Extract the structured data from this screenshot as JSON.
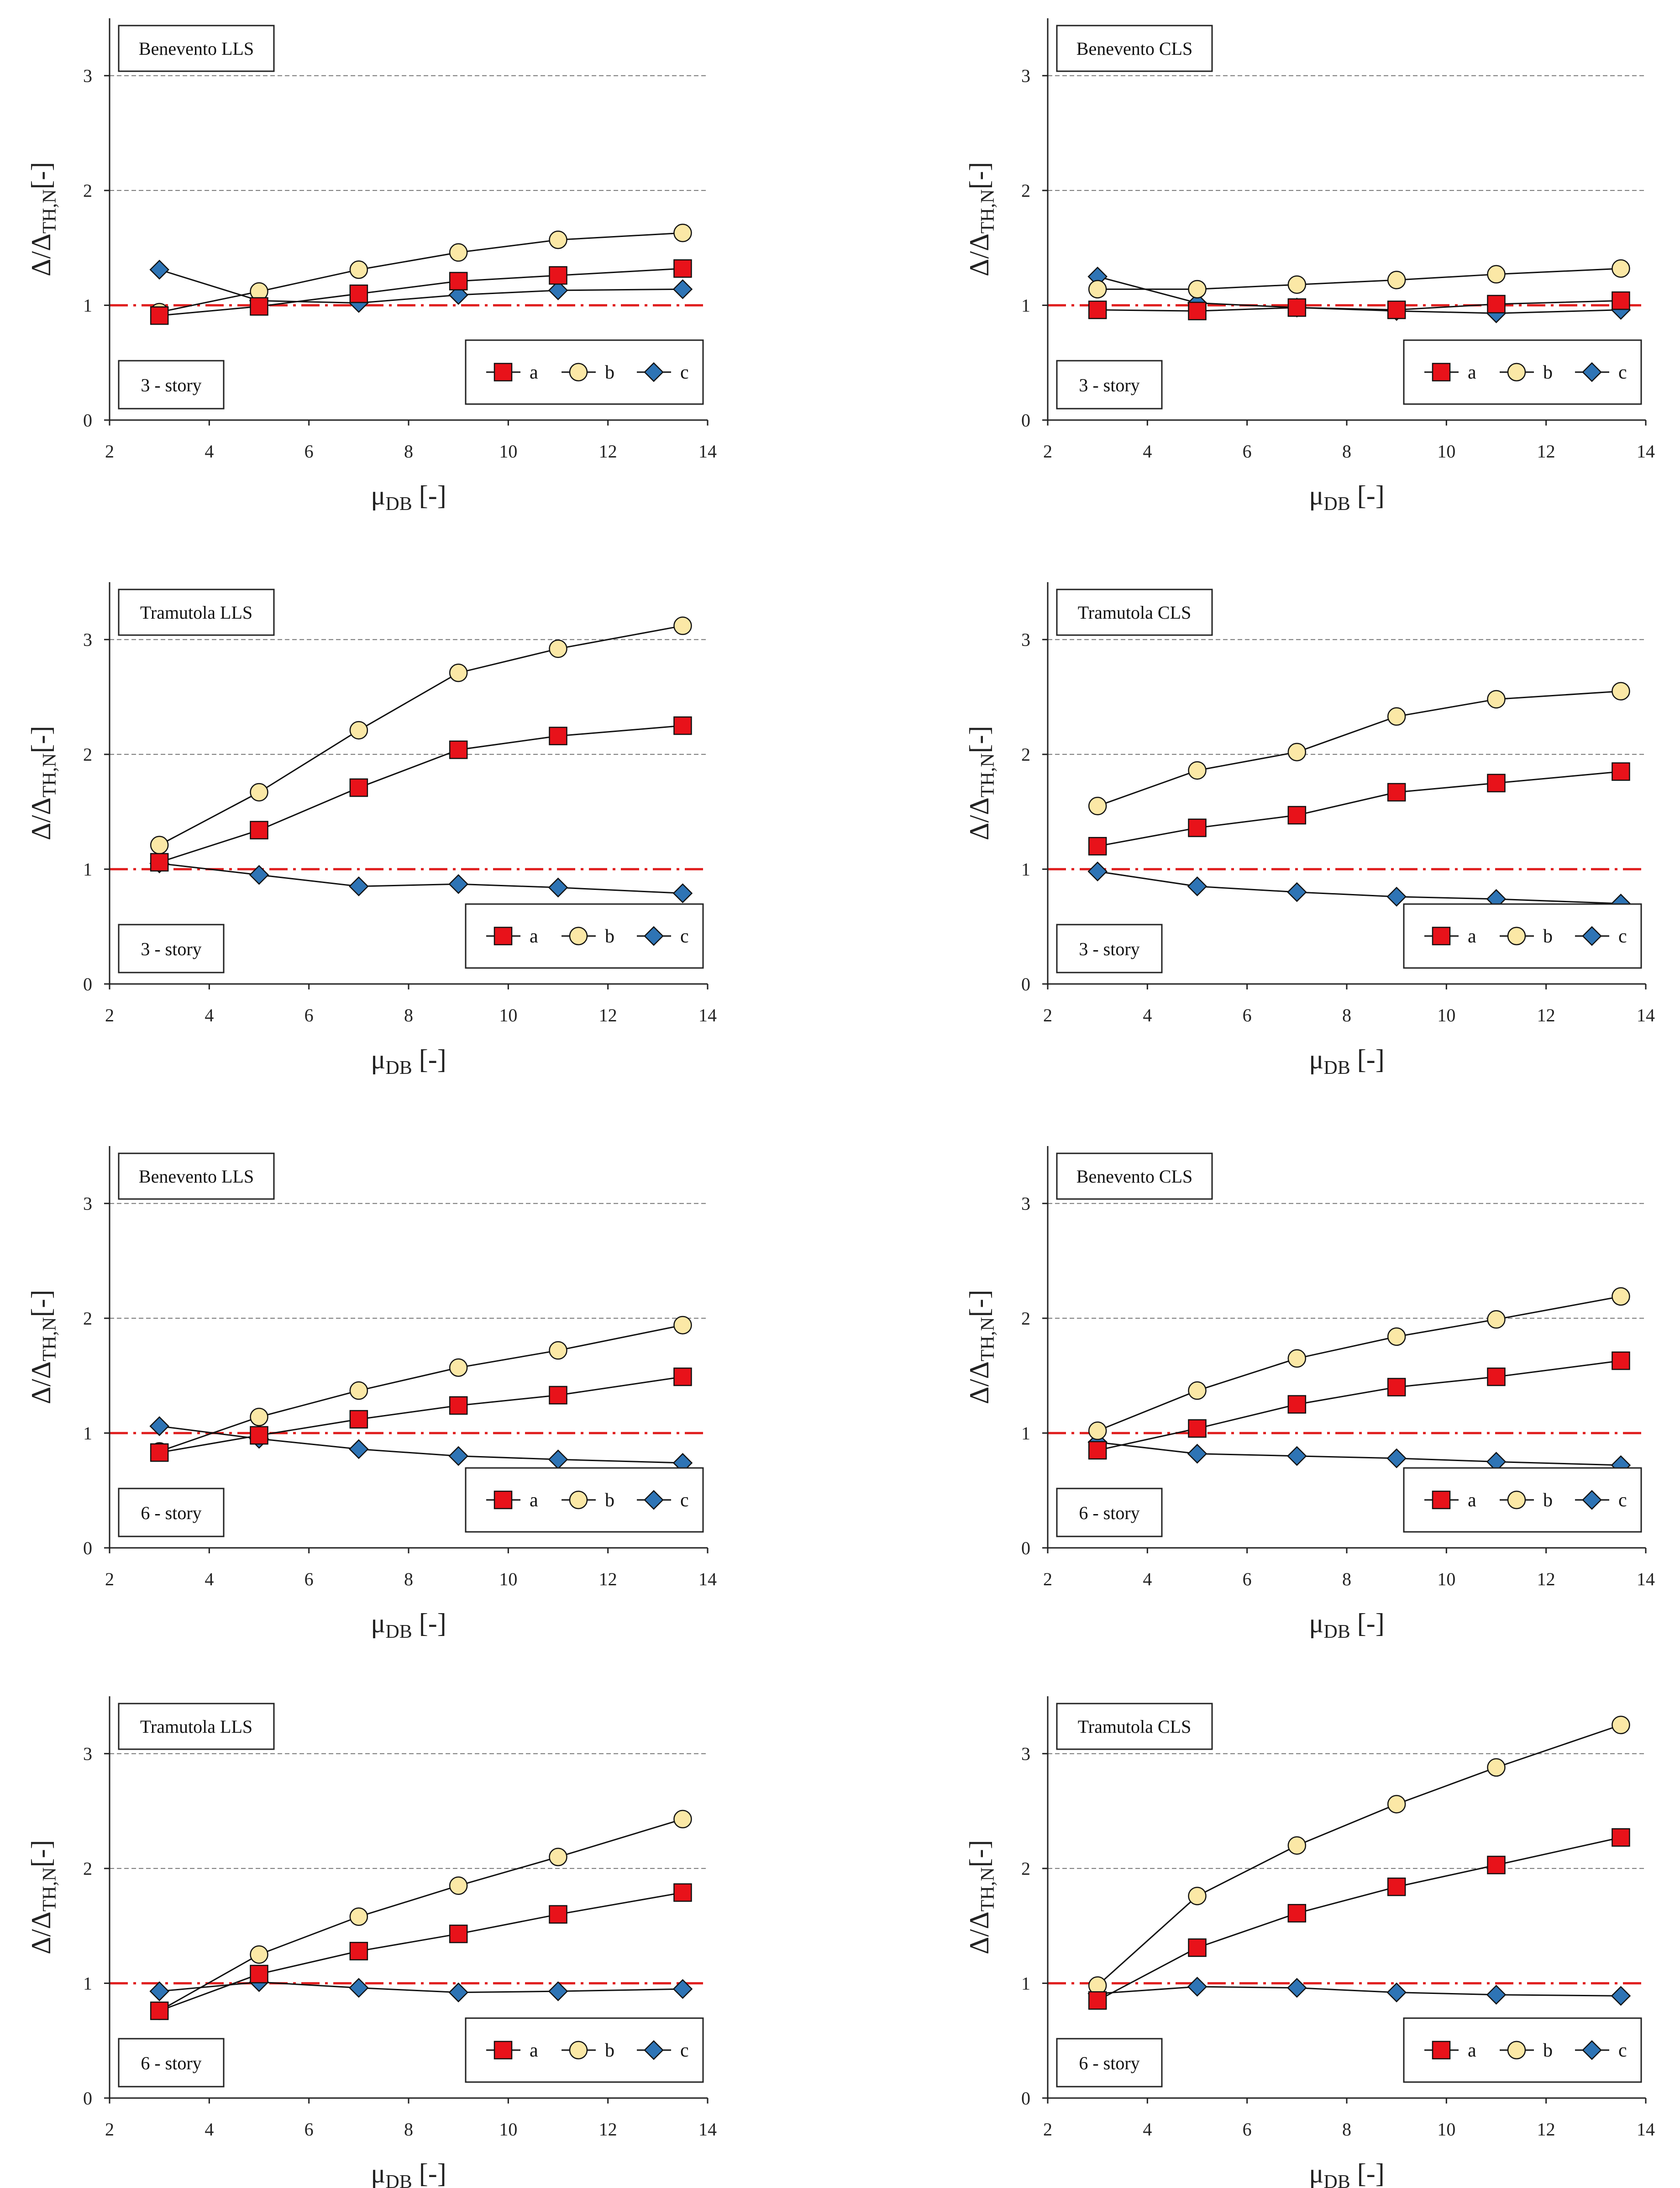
{
  "figure": {
    "series_names": [
      "a",
      "b",
      "c"
    ],
    "marker_styles": {
      "a": "square",
      "b": "circle",
      "c": "diamond"
    },
    "colors": {
      "a_fill": "#e8121a",
      "b_fill": "#fbe8a6",
      "c_fill": "#2e74b5",
      "reference_line": "#e02020",
      "gridline": "#777777",
      "line": "#111111"
    }
  },
  "chart_data": [
    {
      "type": "line",
      "site": "Benevento LLS",
      "story": "3 - story",
      "xlabel": {
        "main": "μ",
        "sub": "DB",
        "tail": " [-]"
      },
      "ylabel": {
        "main": "Δ/Δ",
        "sub": "TH,N",
        "tail": "[-]"
      },
      "xlim": [
        2,
        14
      ],
      "ylim": [
        0,
        3.5
      ],
      "xticks": [
        2,
        4,
        6,
        8,
        10,
        12,
        14
      ],
      "yticks": [
        0,
        1,
        2,
        3
      ],
      "grid_y": [
        2,
        3
      ],
      "reference_y": 1,
      "x": [
        3,
        5,
        7,
        9,
        11,
        13.5
      ],
      "series": [
        {
          "name": "a",
          "values": [
            0.91,
            0.99,
            1.1,
            1.21,
            1.26,
            1.32
          ]
        },
        {
          "name": "b",
          "values": [
            0.94,
            1.12,
            1.31,
            1.46,
            1.57,
            1.63
          ]
        },
        {
          "name": "c",
          "values": [
            1.31,
            1.04,
            1.02,
            1.09,
            1.13,
            1.14
          ]
        }
      ],
      "legend": "bottom-right"
    },
    {
      "type": "line",
      "site": "Benevento CLS",
      "story": "3 - story",
      "xlabel": {
        "main": "μ",
        "sub": "DB",
        "tail": " [-]"
      },
      "ylabel": {
        "main": "Δ/Δ",
        "sub": "TH,N",
        "tail": "[-]"
      },
      "xlim": [
        2,
        14
      ],
      "ylim": [
        0,
        3.5
      ],
      "xticks": [
        2,
        4,
        6,
        8,
        10,
        12,
        14
      ],
      "yticks": [
        0,
        1,
        2,
        3
      ],
      "grid_y": [
        2,
        3
      ],
      "reference_y": 1,
      "x": [
        3,
        5,
        7,
        9,
        11,
        13.5
      ],
      "series": [
        {
          "name": "a",
          "values": [
            0.96,
            0.95,
            0.98,
            0.96,
            1.01,
            1.04
          ]
        },
        {
          "name": "b",
          "values": [
            1.14,
            1.14,
            1.18,
            1.22,
            1.27,
            1.32
          ]
        },
        {
          "name": "c",
          "values": [
            1.25,
            1.02,
            0.98,
            0.95,
            0.93,
            0.96
          ]
        }
      ],
      "legend": "bottom-right"
    },
    {
      "type": "line",
      "site": "Tramutola LLS",
      "story": "3 - story",
      "xlabel": {
        "main": "μ",
        "sub": "DB",
        "tail": " [-]"
      },
      "ylabel": {
        "main": "Δ/Δ",
        "sub": "TH,N",
        "tail": "[-]"
      },
      "xlim": [
        2,
        14
      ],
      "ylim": [
        0,
        3.5
      ],
      "xticks": [
        2,
        4,
        6,
        8,
        10,
        12,
        14
      ],
      "yticks": [
        0,
        1,
        2,
        3
      ],
      "grid_y": [
        2,
        3
      ],
      "reference_y": 1,
      "x": [
        3,
        5,
        7,
        9,
        11,
        13.5
      ],
      "series": [
        {
          "name": "a",
          "values": [
            1.06,
            1.34,
            1.71,
            2.04,
            2.16,
            2.25
          ]
        },
        {
          "name": "b",
          "values": [
            1.21,
            1.67,
            2.21,
            2.71,
            2.92,
            3.12
          ]
        },
        {
          "name": "c",
          "values": [
            1.05,
            0.95,
            0.85,
            0.87,
            0.84,
            0.79
          ]
        }
      ],
      "legend": "bottom-right"
    },
    {
      "type": "line",
      "site": "Tramutola CLS",
      "story": "3 - story",
      "xlabel": {
        "main": "μ",
        "sub": "DB",
        "tail": " [-]"
      },
      "ylabel": {
        "main": "Δ/Δ",
        "sub": "TH,N",
        "tail": "[-]"
      },
      "xlim": [
        2,
        14
      ],
      "ylim": [
        0,
        3.5
      ],
      "xticks": [
        2,
        4,
        6,
        8,
        10,
        12,
        14
      ],
      "yticks": [
        0,
        1,
        2,
        3
      ],
      "grid_y": [
        2,
        3
      ],
      "reference_y": 1,
      "x": [
        3,
        5,
        7,
        9,
        11,
        13.5
      ],
      "series": [
        {
          "name": "a",
          "values": [
            1.2,
            1.36,
            1.47,
            1.67,
            1.75,
            1.85
          ]
        },
        {
          "name": "b",
          "values": [
            1.55,
            1.86,
            2.02,
            2.33,
            2.48,
            2.55
          ]
        },
        {
          "name": "c",
          "values": [
            0.98,
            0.85,
            0.8,
            0.76,
            0.74,
            0.7
          ]
        }
      ],
      "legend": "bottom-right"
    },
    {
      "type": "line",
      "site": "Benevento LLS",
      "story": "6 - story",
      "xlabel": {
        "main": "μ",
        "sub": "DB",
        "tail": " [-]"
      },
      "ylabel": {
        "main": "Δ/Δ",
        "sub": "TH,N",
        "tail": "[-]"
      },
      "xlim": [
        2,
        14
      ],
      "ylim": [
        0,
        3.5
      ],
      "xticks": [
        2,
        4,
        6,
        8,
        10,
        12,
        14
      ],
      "yticks": [
        0,
        1,
        2,
        3
      ],
      "grid_y": [
        2,
        3
      ],
      "reference_y": 1,
      "x": [
        3,
        5,
        7,
        9,
        11,
        13.5
      ],
      "series": [
        {
          "name": "a",
          "values": [
            0.83,
            0.98,
            1.12,
            1.24,
            1.33,
            1.49
          ]
        },
        {
          "name": "b",
          "values": [
            0.84,
            1.14,
            1.37,
            1.57,
            1.72,
            1.94
          ]
        },
        {
          "name": "c",
          "values": [
            1.06,
            0.95,
            0.86,
            0.8,
            0.77,
            0.74
          ]
        }
      ],
      "legend": "bottom-right"
    },
    {
      "type": "line",
      "site": "Benevento CLS",
      "story": "6 - story",
      "xlabel": {
        "main": "μ",
        "sub": "DB",
        "tail": " [-]"
      },
      "ylabel": {
        "main": "Δ/Δ",
        "sub": "TH,N",
        "tail": "[-]"
      },
      "xlim": [
        2,
        14
      ],
      "ylim": [
        0,
        3.5
      ],
      "xticks": [
        2,
        4,
        6,
        8,
        10,
        12,
        14
      ],
      "yticks": [
        0,
        1,
        2,
        3
      ],
      "grid_y": [
        2,
        3
      ],
      "reference_y": 1,
      "x": [
        3,
        5,
        7,
        9,
        11,
        13.5
      ],
      "series": [
        {
          "name": "a",
          "values": [
            0.85,
            1.04,
            1.25,
            1.4,
            1.49,
            1.63
          ]
        },
        {
          "name": "b",
          "values": [
            1.02,
            1.37,
            1.65,
            1.84,
            1.99,
            2.19
          ]
        },
        {
          "name": "c",
          "values": [
            0.92,
            0.82,
            0.8,
            0.78,
            0.75,
            0.72
          ]
        }
      ],
      "legend": "bottom-right"
    },
    {
      "type": "line",
      "site": "Tramutola LLS",
      "story": "6 - story",
      "xlabel": {
        "main": "μ",
        "sub": "DB",
        "tail": " [-]"
      },
      "ylabel": {
        "main": "Δ/Δ",
        "sub": "TH,N",
        "tail": "[-]"
      },
      "xlim": [
        2,
        14
      ],
      "ylim": [
        0,
        3.5
      ],
      "xticks": [
        2,
        4,
        6,
        8,
        10,
        12,
        14
      ],
      "yticks": [
        0,
        1,
        2,
        3
      ],
      "grid_y": [
        2,
        3
      ],
      "reference_y": 1,
      "x": [
        3,
        5,
        7,
        9,
        11,
        13.5
      ],
      "series": [
        {
          "name": "a",
          "values": [
            0.76,
            1.08,
            1.28,
            1.43,
            1.6,
            1.79
          ]
        },
        {
          "name": "b",
          "values": [
            0.76,
            1.25,
            1.58,
            1.85,
            2.1,
            2.43
          ]
        },
        {
          "name": "c",
          "values": [
            0.93,
            1.01,
            0.96,
            0.92,
            0.93,
            0.95
          ]
        }
      ],
      "legend": "bottom-right"
    },
    {
      "type": "line",
      "site": "Tramutola CLS",
      "story": "6 - story",
      "xlabel": {
        "main": "μ",
        "sub": "DB",
        "tail": " [-]"
      },
      "ylabel": {
        "main": "Δ/Δ",
        "sub": "TH,N",
        "tail": "[-]"
      },
      "xlim": [
        2,
        14
      ],
      "ylim": [
        0,
        3.5
      ],
      "xticks": [
        2,
        4,
        6,
        8,
        10,
        12,
        14
      ],
      "yticks": [
        0,
        1,
        2,
        3
      ],
      "grid_y": [
        2,
        3
      ],
      "reference_y": 1,
      "x": [
        3,
        5,
        7,
        9,
        11,
        13.5
      ],
      "series": [
        {
          "name": "a",
          "values": [
            0.85,
            1.31,
            1.61,
            1.84,
            2.03,
            2.27
          ]
        },
        {
          "name": "b",
          "values": [
            0.98,
            1.76,
            2.2,
            2.56,
            2.88,
            3.25
          ]
        },
        {
          "name": "c",
          "values": [
            0.91,
            0.97,
            0.96,
            0.92,
            0.9,
            0.89
          ]
        }
      ],
      "legend": "bottom-right"
    }
  ]
}
